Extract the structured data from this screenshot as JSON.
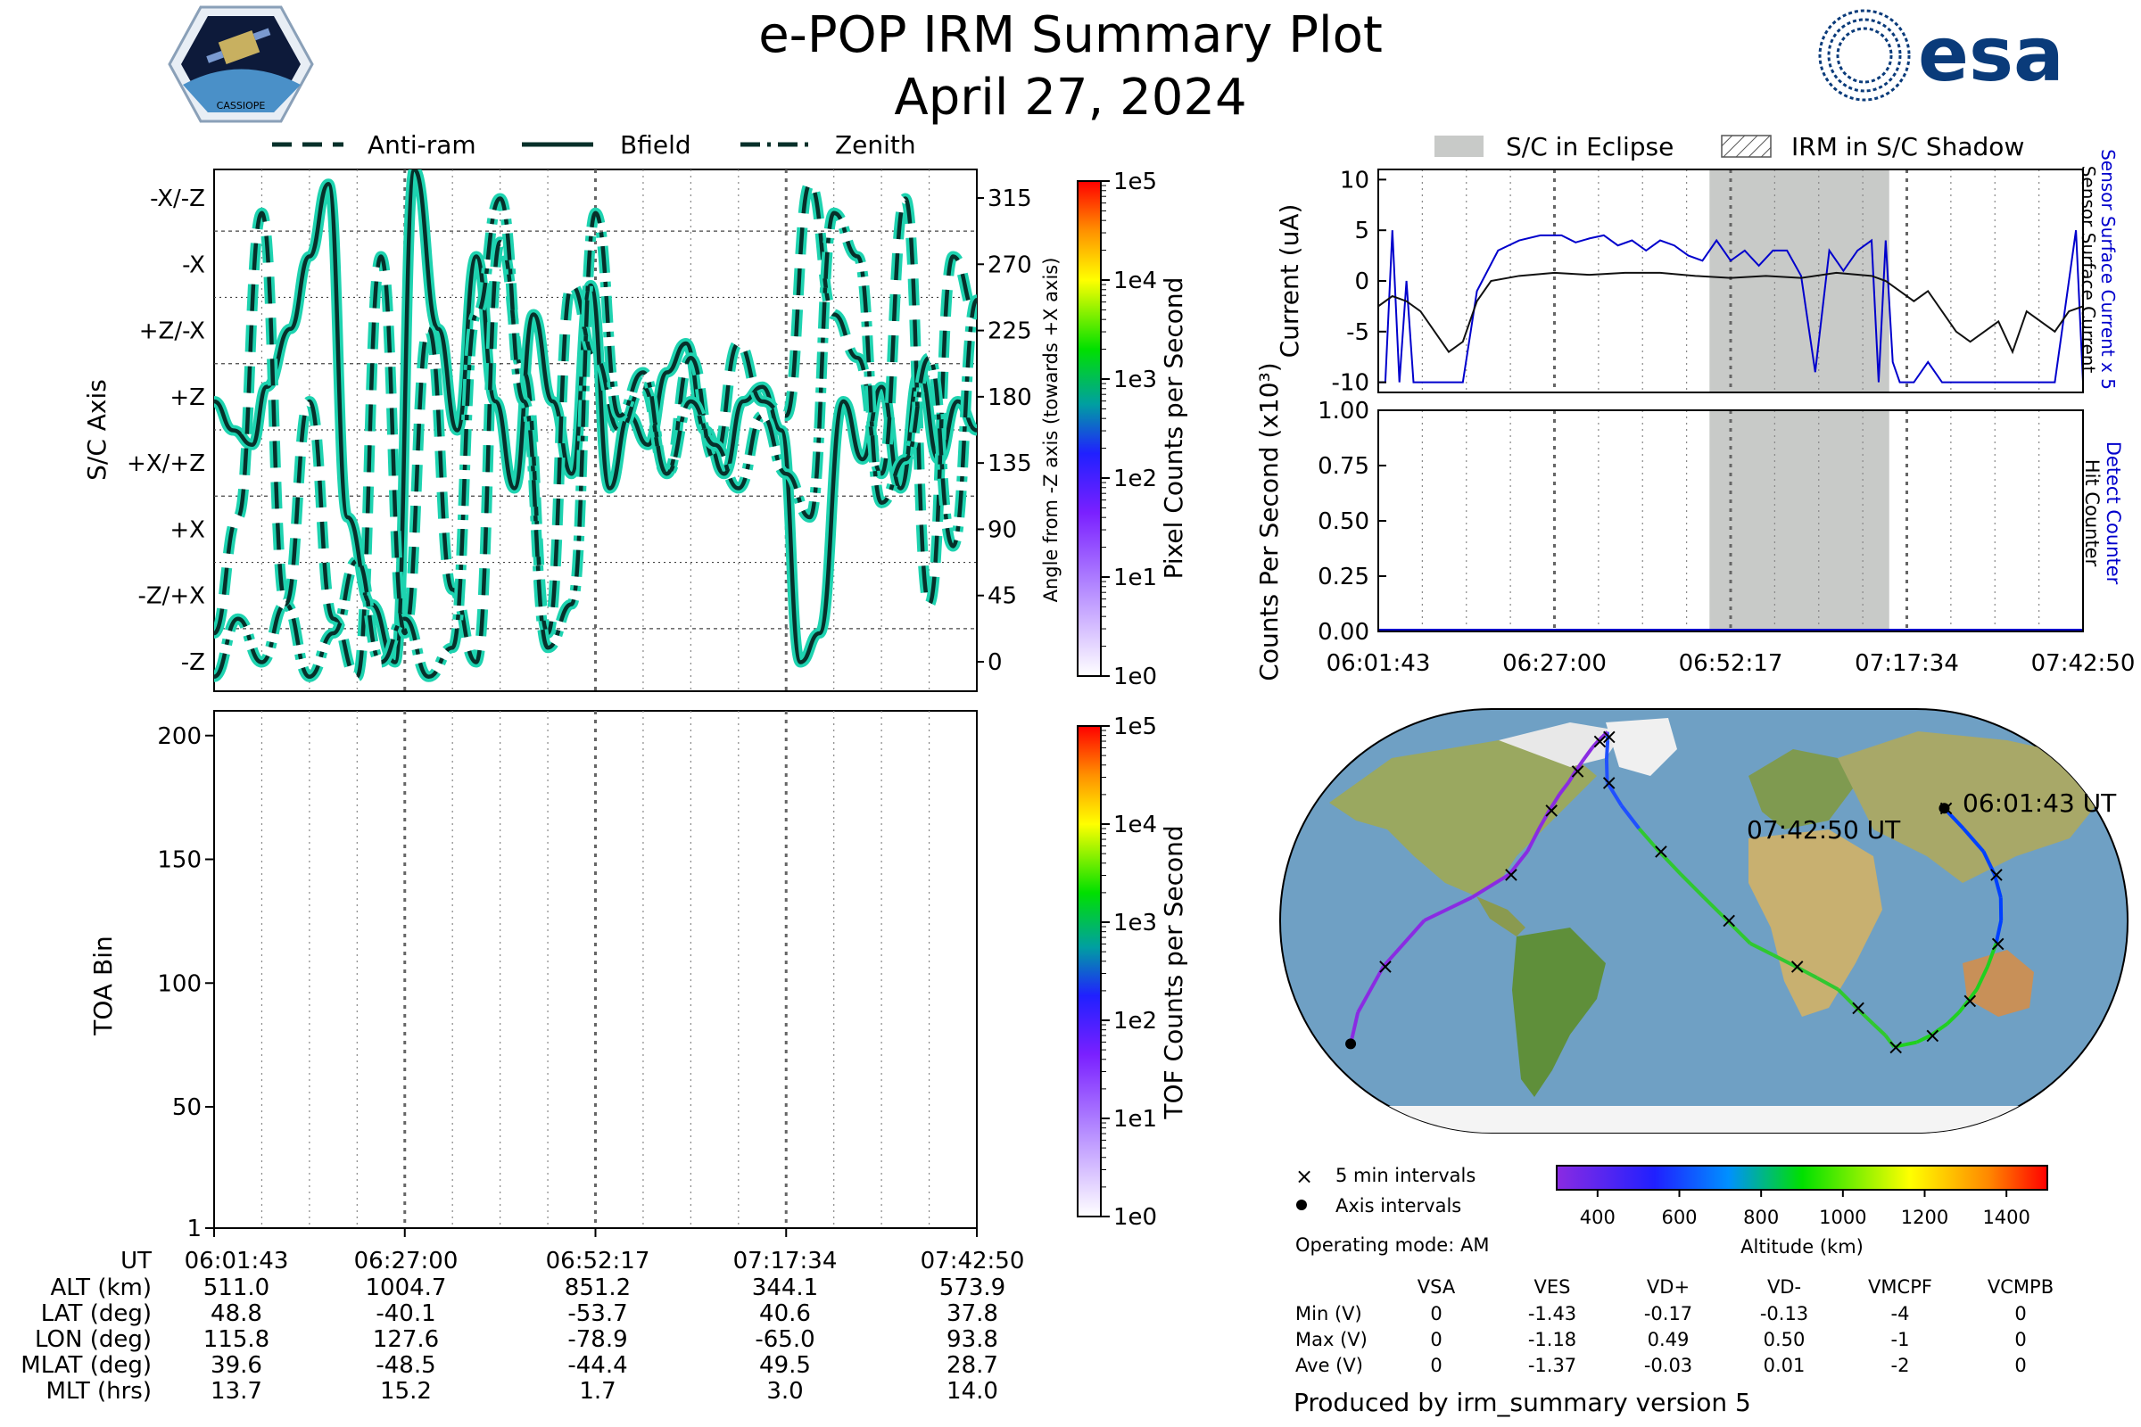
{
  "header": {
    "title": "e-POP IRM Summary Plot",
    "date": "April 27, 2024",
    "left_logo_text": "CASSIOPE",
    "right_logo_text": "esa"
  },
  "colors": {
    "line_teal": "#1ed3b0",
    "line_dark": "#06302a",
    "eclipse": "#c8cac8",
    "sensor_current": "#0000cc",
    "surface_current": "#111111"
  },
  "ut_ticks": [
    "06:01:43",
    "06:27:00",
    "06:52:17",
    "07:17:34",
    "07:42:50"
  ],
  "chart_data": [
    {
      "id": "sc_axis",
      "type": "line",
      "legend": [
        "Anti-ram",
        "Bfield",
        "Zenith"
      ],
      "ylabel": "S/C Axis",
      "ylabel_right": "Angle from -Z axis (towards +X axis)",
      "y_categories": [
        "-X/-Z",
        "-X",
        "+Z/-X",
        "+Z",
        "+X/+Z",
        "+X",
        "-Z/+X",
        "-Z"
      ],
      "y_angles": [
        "315",
        "270",
        "225",
        "180",
        "135",
        "90",
        "45",
        "0"
      ],
      "ylim": [
        0,
        360
      ],
      "series": [
        {
          "name": "Bfield",
          "x": [
            0,
            0.4,
            0.8,
            1.1,
            1.6,
            2.0,
            2.4,
            2.8,
            3.3,
            3.8,
            4.2,
            4.7,
            5.1,
            5.5,
            5.9,
            6.3,
            6.7,
            7.1,
            7.5,
            7.9,
            8.3,
            8.7,
            9.1,
            9.5,
            9.9,
            10.3,
            10.7,
            11.1,
            11.5,
            11.9,
            12.3,
            12.7,
            13.2,
            13.6,
            14.0,
            14.4,
            14.8,
            15.2,
            15.6,
            16.0
          ],
          "y": [
            200,
            180,
            170,
            210,
            250,
            300,
            350,
            120,
            60,
            20,
            360,
            250,
            180,
            300,
            200,
            140,
            260,
            200,
            150,
            280,
            140,
            190,
            170,
            220,
            240,
            180,
            150,
            200,
            210,
            180,
            20,
            40,
            200,
            160,
            210,
            140,
            220,
            160,
            200,
            180
          ]
        },
        {
          "name": "Anti-ram",
          "x": [
            0,
            0.5,
            1.0,
            1.5,
            2.0,
            2.5,
            3.0,
            3.5,
            4.0,
            4.5,
            5.0,
            5.5,
            6.0,
            6.5,
            7.0,
            7.5,
            8.0,
            8.5,
            9.0,
            9.5,
            10.0,
            10.5,
            11.0,
            11.5,
            12.0,
            12.5,
            13.0,
            13.5,
            14.0,
            14.5,
            15.0,
            15.5,
            16.0
          ],
          "y": [
            40,
            120,
            330,
            60,
            200,
            50,
            10,
            300,
            40,
            250,
            70,
            20,
            310,
            220,
            40,
            280,
            230,
            180,
            210,
            150,
            230,
            160,
            240,
            200,
            190,
            350,
            260,
            230,
            150,
            340,
            60,
            300,
            260
          ]
        },
        {
          "name": "Zenith",
          "x": [
            0,
            0.5,
            1.0,
            1.5,
            2.0,
            2.5,
            3.0,
            3.5,
            4.0,
            4.5,
            5.0,
            5.5,
            6.0,
            6.5,
            7.0,
            7.5,
            8.0,
            8.5,
            9.0,
            9.5,
            10.0,
            10.5,
            11.0,
            11.5,
            12.0,
            12.5,
            13.0,
            13.5,
            14.0,
            14.5,
            15.0,
            15.5,
            16.0
          ],
          "y": [
            10,
            50,
            20,
            60,
            10,
            40,
            90,
            20,
            50,
            10,
            30,
            260,
            340,
            200,
            30,
            60,
            330,
            190,
            220,
            150,
            200,
            170,
            140,
            190,
            150,
            120,
            330,
            300,
            130,
            160,
            230,
            100,
            270
          ]
        }
      ],
      "colorbar": {
        "label": "Pixel Counts per Second",
        "ticks": [
          "1e0",
          "1e1",
          "1e2",
          "1e3",
          "1e4",
          "1e5"
        ]
      }
    },
    {
      "id": "toa",
      "type": "heatmap",
      "ylabel": "TOA Bin",
      "y_ticks": [
        1,
        50,
        100,
        150,
        200
      ],
      "ylim": [
        1,
        210
      ],
      "colorbar": {
        "label": "TOF Counts per Second",
        "ticks": [
          "1e0",
          "1e1",
          "1e2",
          "1e3",
          "1e4",
          "1e5"
        ]
      }
    },
    {
      "id": "current",
      "type": "line",
      "legend": [
        "S/C in Eclipse",
        "IRM in S/C Shadow"
      ],
      "ylabel": "Current (uA)",
      "ylabel_right_blue": "Sensor Surface Current x 5",
      "ylabel_right_black": "Sensor Surface Current",
      "y_ticks": [
        10,
        5,
        0,
        -5,
        -10
      ],
      "ylim": [
        -11,
        11
      ],
      "eclipse_x": [
        47.0,
        72.5
      ],
      "series": [
        {
          "name": "Sensor Surface Current x 5",
          "x": [
            0,
            1,
            2,
            3,
            4,
            5,
            6,
            8,
            10,
            12,
            14,
            17,
            20,
            23,
            26,
            28,
            30,
            32,
            34,
            36,
            38,
            40,
            42,
            44,
            46,
            48,
            50,
            52,
            54,
            56,
            58,
            60,
            62,
            64,
            66,
            68,
            70,
            71,
            72,
            73,
            74,
            76,
            78,
            80,
            82,
            84,
            86,
            88,
            90,
            92,
            94,
            96,
            98,
            99,
            100
          ],
          "y": [
            -10,
            -10,
            5,
            -10,
            0,
            -10,
            -10,
            -10,
            -10,
            -10,
            -1,
            3,
            4,
            4.5,
            4.5,
            3.8,
            4.2,
            4.5,
            3.5,
            4.0,
            3.0,
            4.0,
            3.5,
            2.5,
            2.0,
            4.0,
            2.0,
            3.0,
            1.5,
            3.0,
            3.0,
            0.5,
            -9,
            3.0,
            1.0,
            3.0,
            4.0,
            -10,
            4.0,
            -8,
            -10,
            -10,
            -8,
            -10,
            -10,
            -10,
            -10,
            -10,
            -10,
            -10,
            -10,
            -10,
            0,
            5,
            -10
          ]
        },
        {
          "name": "Sensor Surface Current",
          "x": [
            0,
            2,
            4,
            6,
            8,
            10,
            12,
            14,
            16,
            20,
            25,
            30,
            35,
            40,
            45,
            50,
            55,
            60,
            65,
            70,
            72,
            74,
            76,
            78,
            80,
            82,
            84,
            86,
            88,
            90,
            92,
            94,
            96,
            98,
            100
          ],
          "y": [
            -2.5,
            -1.5,
            -2.0,
            -3.0,
            -5.0,
            -7.0,
            -6.0,
            -2.0,
            0.0,
            0.5,
            0.8,
            0.6,
            0.8,
            0.8,
            0.5,
            0.3,
            0.5,
            0.3,
            0.8,
            0.5,
            0.0,
            -1.0,
            -2.0,
            -1.0,
            -3.0,
            -5.0,
            -6.0,
            -5.0,
            -4.0,
            -7.0,
            -3.0,
            -4.0,
            -5.0,
            -3.0,
            -2.5
          ]
        }
      ]
    },
    {
      "id": "counts",
      "type": "line",
      "ylabel": "Counts Per Second (x10³)",
      "ylabel_right_blue": "Detect Counter",
      "ylabel_right_black": "Hit Counter",
      "y_ticks": [
        "1.00",
        "0.75",
        "0.50",
        "0.25",
        "0.00"
      ],
      "ylim": [
        0,
        1
      ],
      "eclipse_x": [
        47.0,
        72.5
      ],
      "series": [
        {
          "name": "Detect Counter",
          "x": [
            0,
            100
          ],
          "y": [
            0,
            0
          ]
        },
        {
          "name": "Hit Counter",
          "x": [
            0,
            100
          ],
          "y": [
            0,
            0
          ]
        }
      ]
    },
    {
      "id": "orbit_map",
      "type": "scatter",
      "start_label": "06:01:43 UT",
      "end_label": "07:42:50 UT",
      "legend": [
        "5 min intervals",
        "Axis intervals"
      ],
      "colorbar": {
        "label": "Altitude (km)",
        "ticks": [
          "400",
          "600",
          "800",
          "1000",
          "1200",
          "1400"
        ],
        "range": [
          300,
          1500
        ]
      },
      "track": {
        "lon": [
          115.8,
          120,
          125,
          127,
          128,
          127.6,
          126,
          124,
          122,
          120,
          118,
          115,
          110,
          105,
          100,
          95,
          88,
          80,
          70,
          60,
          50,
          40,
          30,
          20,
          10,
          0,
          -10,
          -20,
          -30,
          -40,
          -50,
          -55,
          -60,
          -62,
          -64,
          -65,
          -66,
          -67,
          -68,
          -69,
          -70,
          -72,
          -74,
          -76,
          -78.9,
          -85,
          -100,
          -120,
          -140,
          -160,
          -175
        ],
        "lat": [
          48.8,
          40,
          30,
          20,
          10,
          0,
          -10,
          -20,
          -30,
          -35,
          -40,
          -45,
          -50,
          -53,
          -54,
          -55,
          -50,
          -45,
          -38,
          -30,
          -25,
          -20,
          -15,
          -10,
          0,
          10,
          20,
          30,
          40,
          50,
          60,
          70,
          78,
          80,
          82,
          80,
          78,
          75,
          70,
          65,
          60,
          55,
          48,
          40.6,
          30,
          20,
          10,
          0,
          -20,
          -40,
          -53.7
        ]
      }
    }
  ],
  "bottom_table": {
    "row_labels": [
      "UT",
      "ALT (km)",
      "LAT (deg)",
      "LON (deg)",
      "MLAT (deg)",
      "MLT (hrs)"
    ],
    "columns": [
      [
        "06:01:43",
        "511.0",
        "48.8",
        "115.8",
        "39.6",
        "13.7"
      ],
      [
        "06:27:00",
        "1004.7",
        "-40.1",
        "127.6",
        "-48.5",
        "15.2"
      ],
      [
        "06:52:17",
        "851.2",
        "-53.7",
        "-78.9",
        "-44.4",
        "1.7"
      ],
      [
        "07:17:34",
        "344.1",
        "40.6",
        "-65.0",
        "49.5",
        "3.0"
      ],
      [
        "07:42:50",
        "573.9",
        "37.8",
        "93.8",
        "28.7",
        "14.0"
      ]
    ]
  },
  "operating_mode": "Operating mode: AM",
  "voltage_table": {
    "headers": [
      "VSA",
      "VES",
      "VD+",
      "VD-",
      "VMCPF",
      "VCMPB"
    ],
    "rows": [
      {
        "label": "Min (V)",
        "values": [
          "0",
          "-1.43",
          "-0.17",
          "-0.13",
          "-4",
          "0"
        ]
      },
      {
        "label": "Max (V)",
        "values": [
          "0",
          "-1.18",
          "0.49",
          "0.50",
          "-1",
          "0"
        ]
      },
      {
        "label": "Ave (V)",
        "values": [
          "0",
          "-1.37",
          "-0.03",
          "0.01",
          "-2",
          "0"
        ]
      }
    ]
  },
  "footer": "Produced by irm_summary version 5"
}
